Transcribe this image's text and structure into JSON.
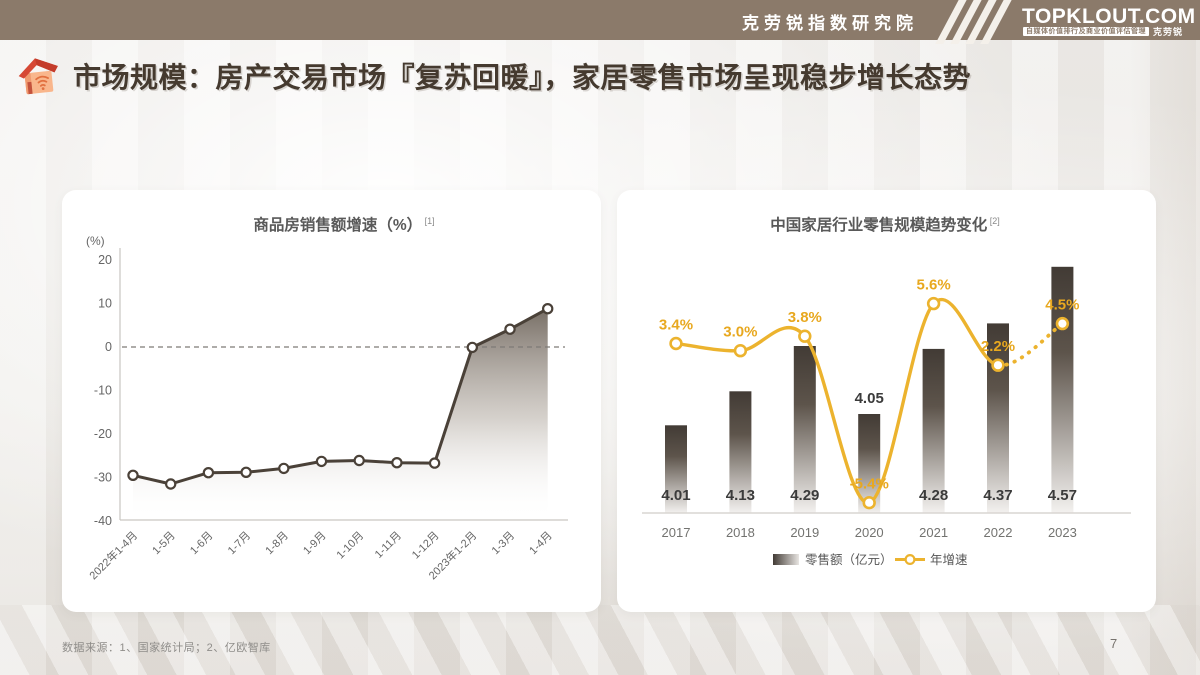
{
  "header": {
    "institute": "克劳锐指数研究院",
    "brand": "TOPKLOUT.COM",
    "tagline": "自媒体价值排行及商业价值评估管理",
    "tagline_suffix": "克劳锐",
    "bar_color": "#8b7a6a"
  },
  "title": {
    "text": "市场规模：房产交易市场『复苏回暖』，家居零售市场呈现稳步增长态势",
    "color": "#453a2f"
  },
  "footer": {
    "source_note": "数据来源：1、国家统计局；2、亿欧智库",
    "page_number": "7"
  },
  "chart_data": [
    {
      "type": "area",
      "title": "商品房销售额增速（%）",
      "footnote_ref": "[1]",
      "y_unit": "(%)",
      "categories": [
        "2022年1-4月",
        "1-5月",
        "1-6月",
        "1-7月",
        "1-8月",
        "1-9月",
        "1-10月",
        "1-11月",
        "1-12月",
        "2023年1-2月",
        "1-3月",
        "1-4月"
      ],
      "values": [
        -29.5,
        -31.5,
        -28.9,
        -28.8,
        -27.9,
        -26.3,
        -26.1,
        -26.6,
        -26.7,
        -0.1,
        4.1,
        8.8
      ],
      "ylim": [
        -40,
        20
      ],
      "yticks": [
        20,
        10,
        0,
        -10,
        -20,
        -30,
        -40
      ],
      "zero_line_dashed": true,
      "line_color": "#4a4138",
      "marker": "white-circle",
      "fill": "vertical gradient dark-taupe to transparent"
    },
    {
      "type": "bar+line",
      "title": "中国家居行业零售规模趋势变化",
      "footnote_ref": "[2]",
      "categories": [
        "2017",
        "2018",
        "2019",
        "2020",
        "2021",
        "2022",
        "2023"
      ],
      "series": [
        {
          "name": "零售额（亿元）",
          "chart": "bar",
          "values": [
            4.01,
            4.13,
            4.29,
            4.05,
            4.28,
            4.37,
            4.57
          ],
          "value_labels": [
            "4.01",
            "4.13",
            "4.29",
            "4.05",
            "4.28",
            "4.37",
            "4.57"
          ],
          "bar_gradient_top": "#423b35",
          "bar_gradient_bottom": "#f3f1ef"
        },
        {
          "name": "年增速",
          "chart": "line",
          "values": [
            3.4,
            3.0,
            3.8,
            -5.4,
            5.6,
            2.2,
            4.5
          ],
          "value_labels": [
            "3.4%",
            "3.0%",
            "3.8%",
            "-5.4%",
            "5.6%",
            "2.2%",
            "4.5%"
          ],
          "color": "#ecb32e",
          "label_color": "#e8a81f",
          "last_segment": "dotted"
        }
      ],
      "legend": [
        "零售额（亿元）",
        "年增速"
      ],
      "legend_position": "bottom",
      "baseline_value_min": 3.7
    }
  ]
}
